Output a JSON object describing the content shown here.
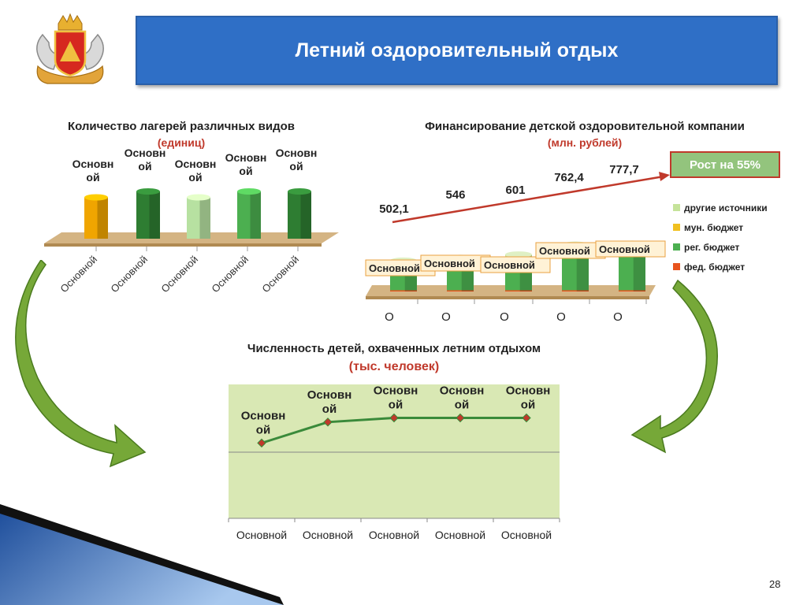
{
  "header": {
    "title": "Летний оздоровительный отдых"
  },
  "page_number": "28",
  "colors": {
    "banner": "#2f6fc6",
    "dark_green": "#2e7d32",
    "green": "#5cb85c",
    "orange": "#f0a500",
    "red_arrow": "#c0392b"
  },
  "chart_data": [
    {
      "type": "bar",
      "title": "Количество лагерей различных видов",
      "subtitle": "(единиц)",
      "categories": [
        "Основной",
        "Основной",
        "Основной",
        "Основной",
        "Основной"
      ],
      "data_labels": [
        "Основной",
        "Основной",
        "Основной",
        "Основной",
        "Основной"
      ],
      "values": [
        0.7,
        0.8,
        0.7,
        0.8,
        0.8
      ],
      "bar_colors": [
        "#f0a500",
        "#2e7d32",
        "#b7e1a1",
        "#4caf50",
        "#2e7d32"
      ]
    },
    {
      "type": "bar",
      "stacked": true,
      "title": "Финансирование детской оздоровительной компании",
      "subtitle": "(млн. рублей)",
      "categories": [
        "О",
        "О",
        "О",
        "О",
        "О"
      ],
      "totals": [
        "502,1",
        "546",
        "601",
        "762,4",
        "777,7"
      ],
      "total_values": [
        502.1,
        546,
        601,
        762.4,
        777.7
      ],
      "segment_labels": [
        "Основной",
        "Основной",
        "Основной",
        "Основной",
        "Основной"
      ],
      "series": [
        {
          "name": "фед. бюджет",
          "color": "#e8541e",
          "values": [
            20,
            20,
            20,
            20,
            20
          ]
        },
        {
          "name": "рег. бюджет",
          "color": "#4caf50",
          "values": [
            380,
            420,
            470,
            620,
            640
          ]
        },
        {
          "name": "мун. бюджет",
          "color": "#f0c020",
          "values": [
            30,
            30,
            30,
            35,
            35
          ]
        },
        {
          "name": "другие источники",
          "color": "#c5e39a",
          "values": [
            72,
            76,
            81,
            87,
            83
          ]
        }
      ],
      "legend_position": "right",
      "annotation": "Рост на 55%"
    },
    {
      "type": "line",
      "title": "Численность детей, охваченных летним отдыхом",
      "subtitle": "(тыс. человек)",
      "categories": [
        "Основной",
        "Основной",
        "Основной",
        "Основной",
        "Основной"
      ],
      "data_labels": [
        "Основной",
        "Основной",
        "Основной",
        "Основной",
        "Основной"
      ],
      "values": [
        0.9,
        1.15,
        1.2,
        1.2,
        1.2
      ],
      "ylim": [
        0,
        1.6
      ],
      "grid": true,
      "plot_background": "#d9e8b4"
    }
  ]
}
